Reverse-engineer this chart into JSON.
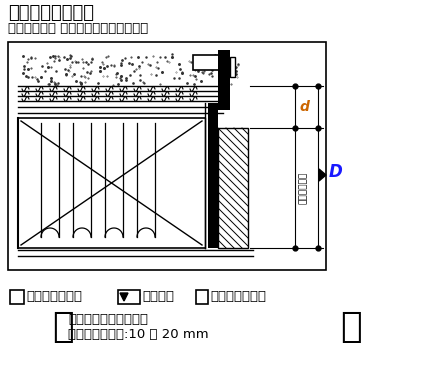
{
  "title1": "窓枠幅の決定方法",
  "title2": "（デュオ他用 ノンケーシングタイプ）",
  "formula_text1": "壁厚残り寸法＝",
  "formula_text2": "外壁厚－",
  "formula_text3": "サッシ柱掛かり",
  "note_line1": "壁面よりの窓枠出寸法",
  "note_line2": "幅木ファミリー:10 ～ 20 mm",
  "dim_D": "D",
  "dim_d": "d",
  "dim_wall": "壁厚残り寸法",
  "bg_color": "#ffffff",
  "lc": "#000000",
  "blue": "#1a1aff",
  "orange": "#cc6600"
}
